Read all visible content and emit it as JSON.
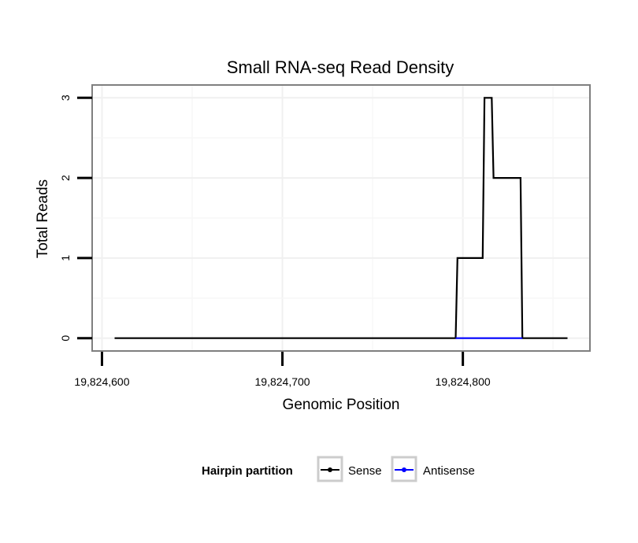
{
  "chart_data": {
    "type": "line",
    "title": "Small RNA-seq Read Density",
    "xlabel": "Genomic Position",
    "ylabel": "Total Reads",
    "xlim": [
      19824595,
      19824870
    ],
    "ylim": [
      -0.15,
      3.15
    ],
    "x_ticks": [
      {
        "value": 19824600,
        "label": "19,824,600"
      },
      {
        "value": 19824700,
        "label": "19,824,700"
      },
      {
        "value": 19824800,
        "label": "19,824,800"
      }
    ],
    "y_ticks": [
      {
        "value": 0,
        "label": "0"
      },
      {
        "value": 1,
        "label": "1"
      },
      {
        "value": 2,
        "label": "2"
      },
      {
        "value": 3,
        "label": "3"
      }
    ],
    "grid": true,
    "legend": {
      "title": "Hairpin partition",
      "position": "bottom"
    },
    "series": [
      {
        "name": "Sense",
        "color": "#000000",
        "step": true,
        "x": [
          19824607,
          19824796,
          19824797,
          19824811,
          19824812,
          19824816,
          19824817,
          19824832,
          19824833,
          19824858
        ],
        "y": [
          0,
          0,
          1,
          1,
          3,
          3,
          2,
          2,
          0,
          0
        ]
      },
      {
        "name": "Antisense",
        "color": "#0000ff",
        "step": true,
        "x": [
          19824796,
          19824833
        ],
        "y": [
          0,
          0
        ]
      }
    ]
  }
}
